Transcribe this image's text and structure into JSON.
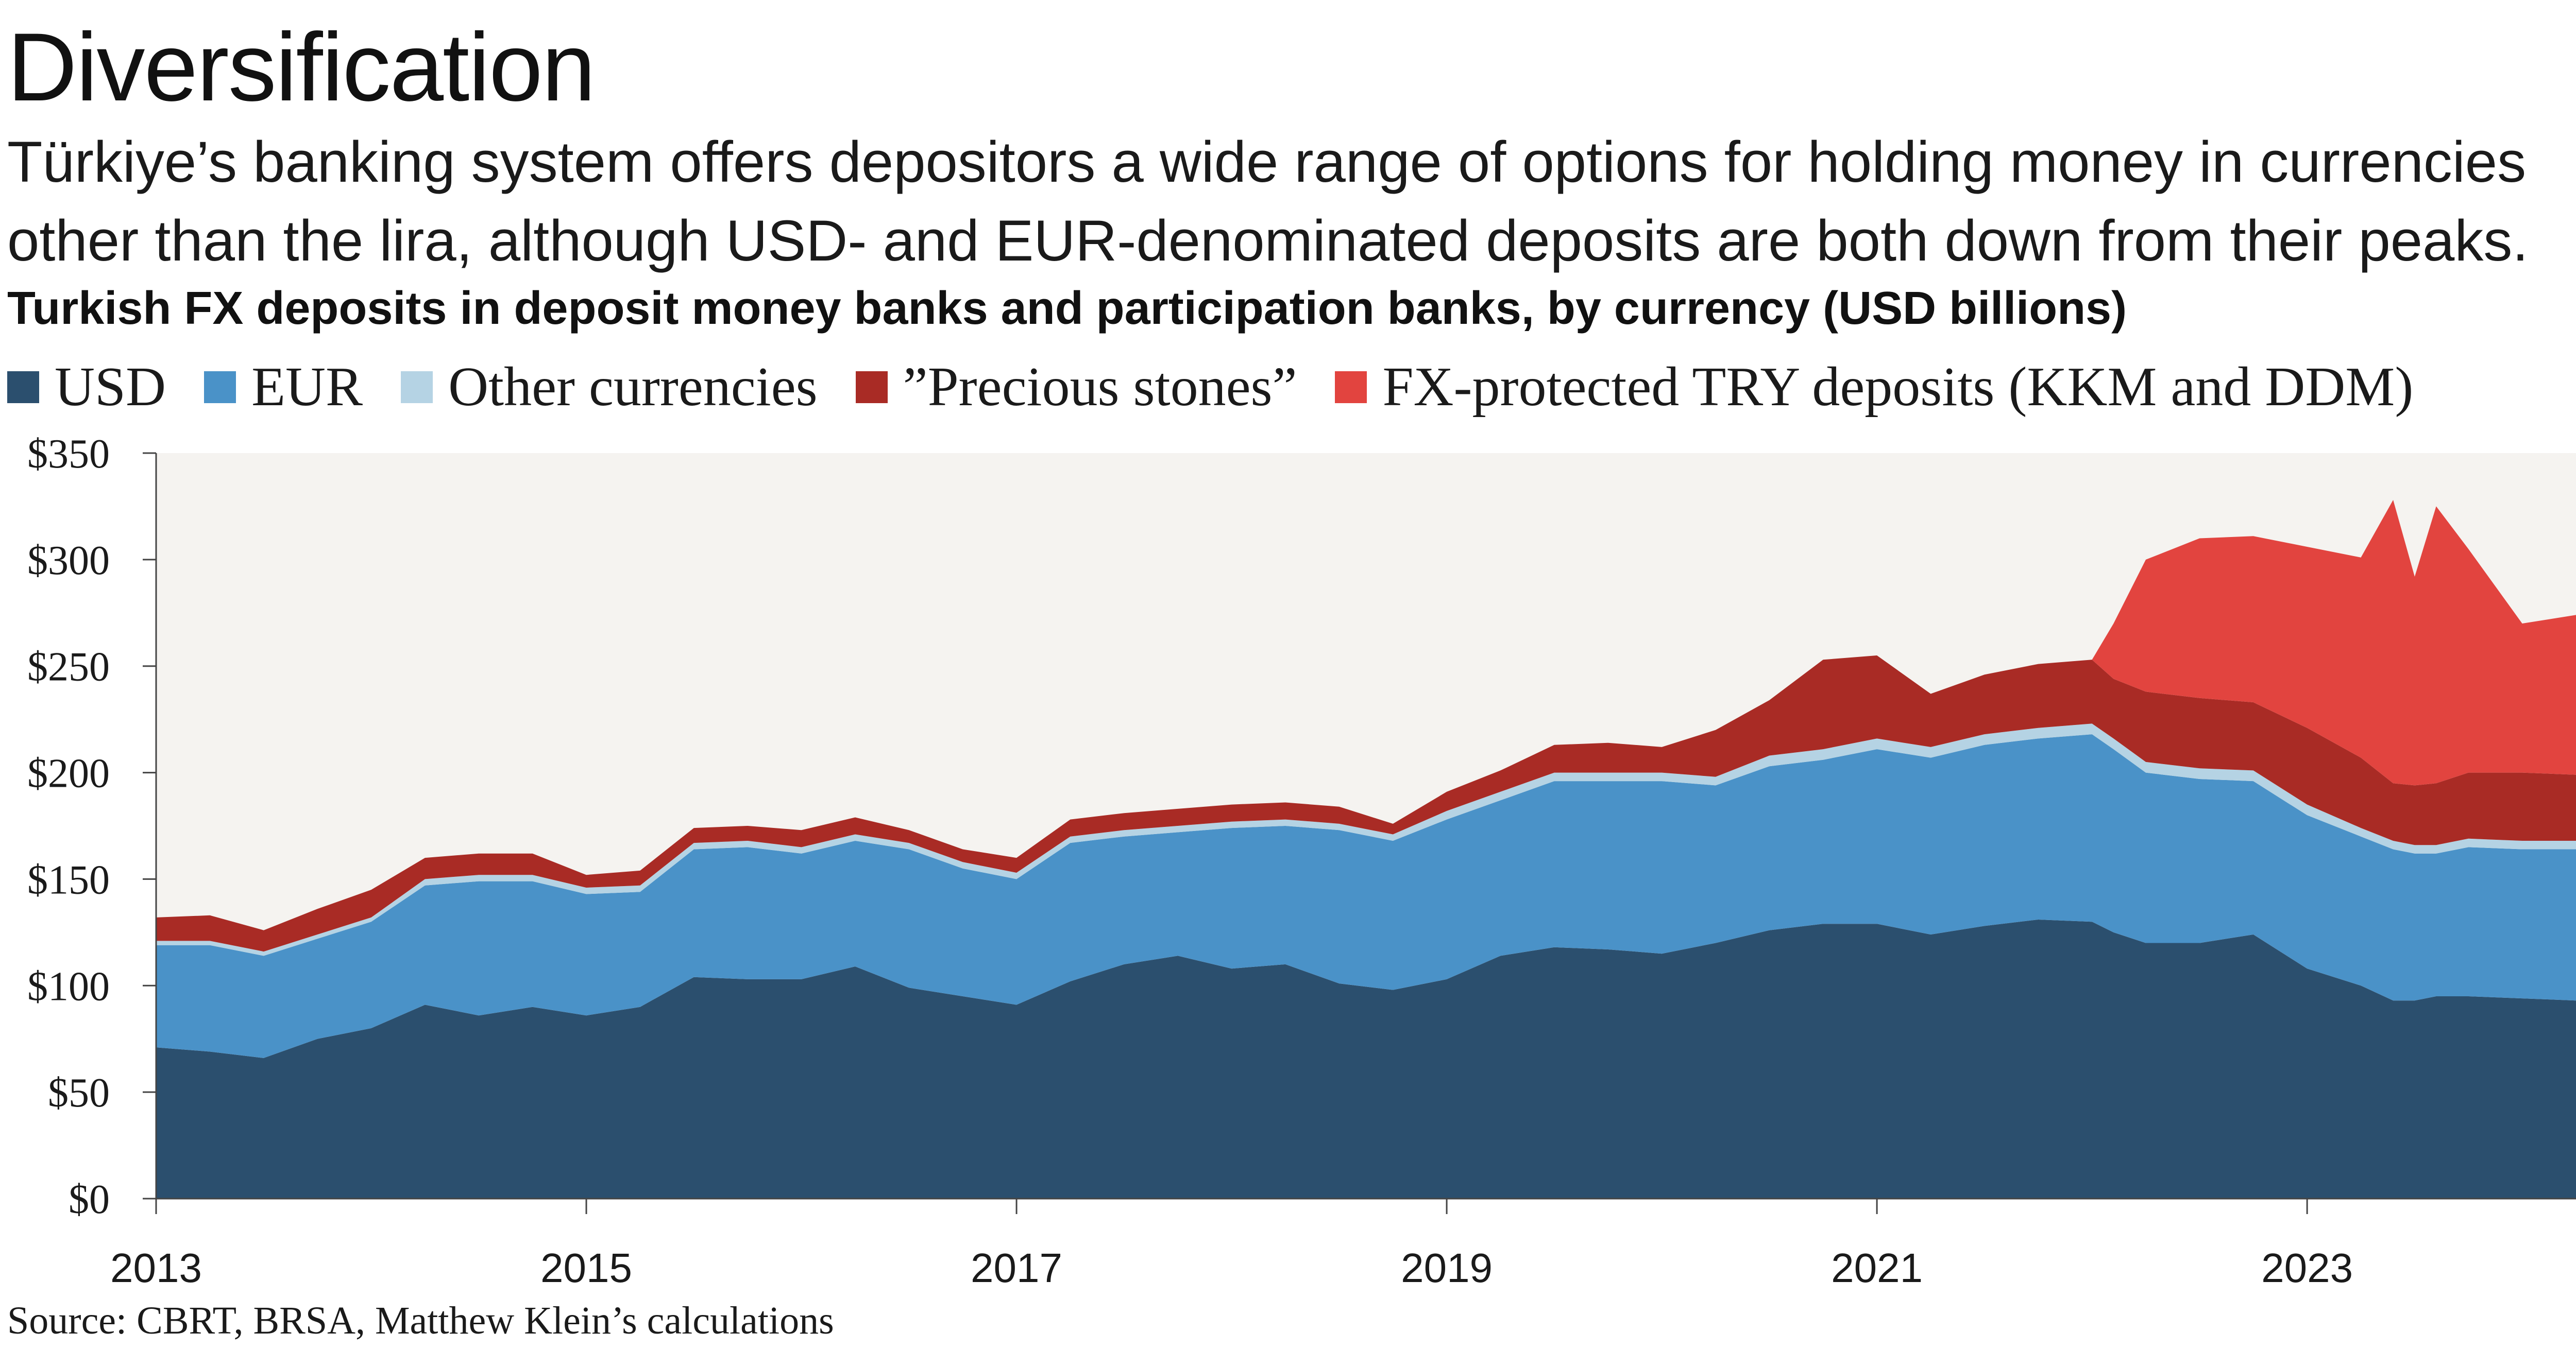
{
  "title": "Diversification",
  "subtitle": "Türkiye’s banking system offers depositors a wide range of options for holding money in currencies other than the lira, although USD- and EUR-denominated deposits are both down from their peaks.",
  "chart_heading": "Turkish FX deposits in deposit money banks and participation banks, by currency (USD billions)",
  "source": "Source: CBRT, BRSA, Matthew Klein’s calculations",
  "chart_data": {
    "type": "area",
    "stacked": true,
    "x_unit": "year",
    "xlim": [
      2013.0,
      2024.25
    ],
    "ylim": [
      0,
      350
    ],
    "x_ticks": [
      2013,
      2015,
      2017,
      2019,
      2021,
      2023
    ],
    "x_tick_labels": [
      "2013",
      "2015",
      "2017",
      "2019",
      "2021",
      "2023"
    ],
    "y_ticks": [
      0,
      50,
      100,
      150,
      200,
      250,
      300,
      350
    ],
    "y_tick_labels": [
      "$0",
      "$50",
      "$100",
      "$150",
      "$200",
      "$250",
      "$300",
      "$350"
    ],
    "grid": false,
    "legend_position": "top",
    "plot_background": "#f5f3f0",
    "x": [
      2013.0,
      2013.25,
      2013.5,
      2013.75,
      2014.0,
      2014.25,
      2014.5,
      2014.75,
      2015.0,
      2015.25,
      2015.5,
      2015.75,
      2016.0,
      2016.25,
      2016.5,
      2016.75,
      2017.0,
      2017.25,
      2017.5,
      2017.75,
      2018.0,
      2018.25,
      2018.5,
      2018.75,
      2019.0,
      2019.25,
      2019.5,
      2019.75,
      2020.0,
      2020.25,
      2020.5,
      2020.75,
      2021.0,
      2021.25,
      2021.5,
      2021.75,
      2022.0,
      2022.1,
      2022.25,
      2022.5,
      2022.75,
      2023.0,
      2023.25,
      2023.4,
      2023.5,
      2023.6,
      2023.75,
      2024.0,
      2024.25
    ],
    "series": [
      {
        "name": "USD",
        "color": "#2b4f6e",
        "values": [
          71,
          69,
          66,
          75,
          80,
          91,
          86,
          90,
          86,
          90,
          104,
          103,
          103,
          109,
          99,
          95,
          91,
          102,
          110,
          114,
          108,
          110,
          101,
          98,
          103,
          114,
          118,
          117,
          115,
          120,
          126,
          129,
          129,
          124,
          128,
          131,
          130,
          125,
          120,
          120,
          124,
          108,
          100,
          93,
          93,
          95,
          95,
          94,
          93
        ]
      },
      {
        "name": "EUR",
        "color": "#4a92c8",
        "values": [
          48,
          50,
          48,
          47,
          50,
          56,
          63,
          59,
          57,
          54,
          60,
          62,
          59,
          59,
          65,
          60,
          59,
          65,
          60,
          58,
          66,
          65,
          72,
          70,
          75,
          73,
          78,
          79,
          81,
          74,
          77,
          77,
          82,
          83,
          85,
          85,
          88,
          86,
          80,
          77,
          72,
          72,
          70,
          71,
          69,
          67,
          70,
          70,
          71
        ]
      },
      {
        "name": "Other currencies",
        "color": "#b5d3e4",
        "values": [
          2,
          2,
          2,
          2,
          2,
          3,
          3,
          3,
          3,
          3,
          3,
          3,
          3,
          3,
          3,
          3,
          3,
          3,
          3,
          3,
          3,
          3,
          3,
          3,
          4,
          4,
          4,
          4,
          4,
          4,
          5,
          5,
          5,
          5,
          5,
          5,
          5,
          5,
          5,
          5,
          5,
          5,
          4,
          4,
          4,
          4,
          4,
          4,
          4
        ]
      },
      {
        "name": "”Precious stones”",
        "color": "#a92b25",
        "values": [
          11,
          12,
          10,
          12,
          13,
          10,
          10,
          10,
          6,
          7,
          7,
          7,
          8,
          8,
          6,
          6,
          7,
          8,
          8,
          8,
          8,
          8,
          8,
          5,
          9,
          10,
          13,
          14,
          12,
          22,
          26,
          42,
          39,
          25,
          28,
          30,
          30,
          28,
          33,
          33,
          32,
          36,
          33,
          27,
          28,
          29,
          31,
          32,
          31
        ]
      },
      {
        "name": "FX-protected TRY deposits (KKM and DDM)",
        "color": "#e2443f",
        "values": [
          0,
          0,
          0,
          0,
          0,
          0,
          0,
          0,
          0,
          0,
          0,
          0,
          0,
          0,
          0,
          0,
          0,
          0,
          0,
          0,
          0,
          0,
          0,
          0,
          0,
          0,
          0,
          0,
          0,
          0,
          0,
          0,
          0,
          0,
          0,
          0,
          0,
          26,
          62,
          75,
          78,
          85,
          94,
          133,
          98,
          130,
          105,
          70,
          75
        ]
      }
    ]
  }
}
